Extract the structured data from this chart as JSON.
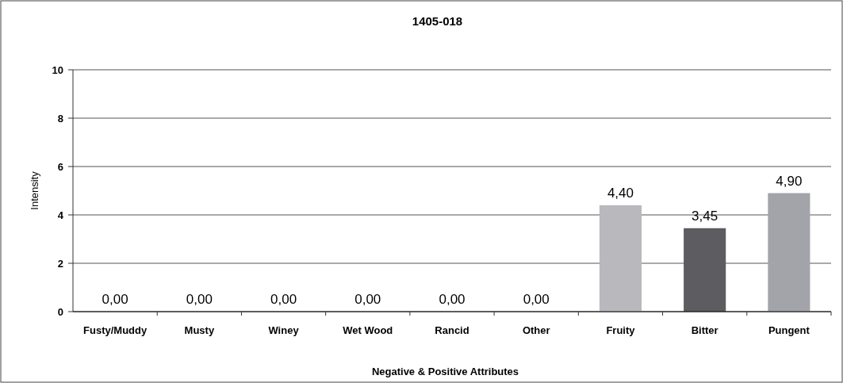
{
  "chart_data": {
    "type": "bar",
    "title": "1405-018",
    "xlabel": "Negative & Positive Attributes",
    "ylabel": "Intensity",
    "categories": [
      "Fusty/Muddy",
      "Musty",
      "Winey",
      "Wet Wood",
      "Rancid",
      "Other",
      "Fruity",
      "Bitter",
      "Pungent"
    ],
    "values": [
      0,
      0,
      0,
      0,
      0,
      0,
      4.4,
      3.45,
      4.9
    ],
    "value_labels": [
      "0,00",
      "0,00",
      "0,00",
      "0,00",
      "0,00",
      "0,00",
      "4,40",
      "3,45",
      "4,90"
    ],
    "colors": [
      "#b5b5ba",
      "#b5b5ba",
      "#b5b5ba",
      "#b5b5ba",
      "#b5b5ba",
      "#b5b5ba",
      "#b8b8bd",
      "#5c5c61",
      "#a3a3aa"
    ],
    "ylim": [
      0,
      10
    ],
    "yticks": [
      0,
      2,
      4,
      6,
      8,
      10
    ],
    "grid": "y"
  }
}
